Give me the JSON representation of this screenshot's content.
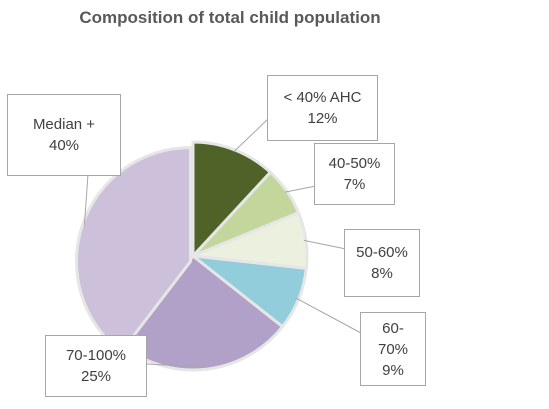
{
  "chart_data": {
    "type": "pie",
    "title": "Composition of total child population",
    "slices": [
      {
        "label_lines": [
          "< 40% AHC"
        ],
        "value": 12,
        "value_label": "12%",
        "color": "#4f6228"
      },
      {
        "label_lines": [
          "40-50%"
        ],
        "value": 7,
        "value_label": "7%",
        "color": "#c3d69b"
      },
      {
        "label_lines": [
          "50-60%"
        ],
        "value": 8,
        "value_label": "8%",
        "color": "#ebf1de"
      },
      {
        "label_lines": [
          "60-",
          "70%"
        ],
        "value": 9,
        "value_label": "9%",
        "color": "#92cddc"
      },
      {
        "label_lines": [
          "70-100%"
        ],
        "value": 25,
        "value_label": "25%",
        "color": "#b1a0c7"
      },
      {
        "label_lines": [
          "Median +"
        ],
        "value": 40,
        "value_label": "40%",
        "color": "#ccc0da"
      }
    ]
  }
}
